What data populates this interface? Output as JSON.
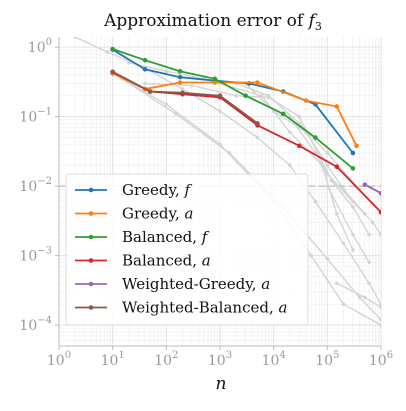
{
  "chart_data": {
    "type": "line",
    "title": "Approximation error of f_3",
    "title_display": {
      "main": "Approximation error of ",
      "var": "f",
      "sub": "3"
    },
    "xlabel": "n",
    "ylabel": "",
    "x_scale": "log",
    "y_scale": "log",
    "xlim": [
      1,
      1000000
    ],
    "ylim": [
      5e-05,
      1.4
    ],
    "x_ticks": [
      {
        "value": 1,
        "base": "10",
        "exp": "0"
      },
      {
        "value": 10,
        "base": "10",
        "exp": "1"
      },
      {
        "value": 100,
        "base": "10",
        "exp": "2"
      },
      {
        "value": 1000,
        "base": "10",
        "exp": "3"
      },
      {
        "value": 10000,
        "base": "10",
        "exp": "4"
      },
      {
        "value": 100000,
        "base": "10",
        "exp": "5"
      },
      {
        "value": 1000000,
        "base": "10",
        "exp": "6"
      }
    ],
    "y_ticks": [
      {
        "value": 0.0001,
        "base": "10",
        "exp": "−4"
      },
      {
        "value": 0.001,
        "base": "10",
        "exp": "−3"
      },
      {
        "value": 0.01,
        "base": "10",
        "exp": "−2"
      },
      {
        "value": 0.1,
        "base": "10",
        "exp": "−1"
      },
      {
        "value": 1,
        "base": "10",
        "exp": "0"
      }
    ],
    "reference_line": {
      "y": 0.01,
      "style": "dashed",
      "color": "#bbbbbb"
    },
    "grid": true,
    "legend_position": "bottom-left",
    "series": [
      {
        "name": "Greedy, f",
        "name_main": "Greedy, ",
        "name_var": "f",
        "color": "#1f77b4",
        "x": [
          10,
          40,
          180,
          800,
          3500,
          15000,
          60000,
          300000
        ],
        "y": [
          0.92,
          0.48,
          0.37,
          0.33,
          0.3,
          0.23,
          0.15,
          0.03
        ]
      },
      {
        "name": "Greedy, a",
        "name_main": "Greedy, ",
        "name_var": "a",
        "color": "#ff7f0e",
        "x": [
          10,
          40,
          180,
          800,
          5000,
          40000,
          150000,
          350000
        ],
        "y": [
          0.42,
          0.25,
          0.31,
          0.31,
          0.31,
          0.17,
          0.14,
          0.038
        ]
      },
      {
        "name": "Balanced, f",
        "name_main": "Balanced, ",
        "name_var": "f",
        "color": "#2ca02c",
        "x": [
          10,
          40,
          180,
          800,
          3000,
          15000,
          60000,
          300000
        ],
        "y": [
          0.94,
          0.65,
          0.45,
          0.35,
          0.2,
          0.11,
          0.05,
          0.018
        ]
      },
      {
        "name": "Balanced, a",
        "name_main": "Balanced, ",
        "name_var": "a",
        "color": "#d62728",
        "x": [
          10,
          50,
          200,
          1000,
          5000,
          30000,
          150000,
          1000000
        ],
        "y": [
          0.44,
          0.23,
          0.21,
          0.19,
          0.075,
          0.038,
          0.019,
          0.0042
        ]
      },
      {
        "name": "Weighted-Greedy, a",
        "name_main": "Weighted-Greedy, ",
        "name_var": "a",
        "color": "#9467bd",
        "x": [
          500000,
          1000000
        ],
        "y": [
          0.0105,
          0.0079
        ]
      },
      {
        "name": "Weighted-Balanced, a",
        "name_main": "Weighted-Balanced, ",
        "name_var": "a",
        "color": "#8c564b",
        "x": [
          10,
          50,
          200,
          1000,
          5000
        ],
        "y": [
          0.44,
          0.23,
          0.22,
          0.2,
          0.08
        ]
      }
    ],
    "background_lines": [
      [
        [
          2,
          1.4
        ],
        [
          8,
          0.85
        ],
        [
          40,
          0.5
        ],
        [
          200,
          0.25
        ],
        [
          1000,
          0.12
        ],
        [
          5000,
          0.05
        ],
        [
          20000,
          0.02
        ],
        [
          60000,
          0.006
        ],
        [
          200000,
          0.0015
        ],
        [
          600000,
          0.0004
        ],
        [
          1000000,
          0.0002
        ]
      ],
      [
        [
          10,
          0.42
        ],
        [
          100,
          0.15
        ],
        [
          1000,
          0.04
        ],
        [
          10000,
          0.006
        ],
        [
          50000,
          0.001
        ],
        [
          200000,
          0.0002
        ],
        [
          1000000,
          0.0001
        ]
      ],
      [
        [
          15,
          0.35
        ],
        [
          150,
          0.11
        ],
        [
          1500,
          0.03
        ],
        [
          15000,
          0.005
        ],
        [
          100000,
          0.0009
        ],
        [
          400000,
          0.00025
        ],
        [
          1000000,
          0.00012
        ]
      ],
      [
        [
          40,
          0.3
        ],
        [
          300,
          0.28
        ],
        [
          2000,
          0.2
        ],
        [
          8000,
          0.19
        ],
        [
          30000,
          0.1
        ],
        [
          120000,
          0.012
        ],
        [
          300000,
          0.005
        ],
        [
          600000,
          0.002
        ]
      ],
      [
        [
          3000,
          0.3
        ],
        [
          10000,
          0.12
        ],
        [
          40000,
          0.06
        ],
        [
          100000,
          0.02
        ],
        [
          200000,
          0.009
        ],
        [
          500000,
          0.004
        ]
      ],
      [
        [
          1000,
          0.3
        ],
        [
          6000,
          0.2
        ],
        [
          20000,
          0.06
        ],
        [
          80000,
          0.02
        ],
        [
          150000,
          0.004
        ],
        [
          300000,
          0.0012
        ]
      ],
      [
        [
          20000,
          0.1
        ],
        [
          60000,
          0.03
        ],
        [
          100000,
          0.015
        ],
        [
          300000,
          0.006
        ],
        [
          700000,
          0.003
        ],
        [
          1000000,
          0.002
        ]
      ],
      [
        [
          100000,
          0.01
        ],
        [
          300000,
          0.002
        ],
        [
          600000,
          0.0008
        ]
      ],
      [
        [
          150000,
          0.0004
        ],
        [
          500000,
          0.00025
        ],
        [
          1000000,
          0.00018
        ]
      ],
      [
        [
          20,
          0.6
        ],
        [
          100,
          0.45
        ],
        [
          500,
          0.35
        ],
        [
          2000,
          0.3
        ],
        [
          8000,
          0.2
        ],
        [
          30000,
          0.08
        ],
        [
          100000,
          0.03
        ],
        [
          400000,
          0.009
        ]
      ]
    ]
  }
}
